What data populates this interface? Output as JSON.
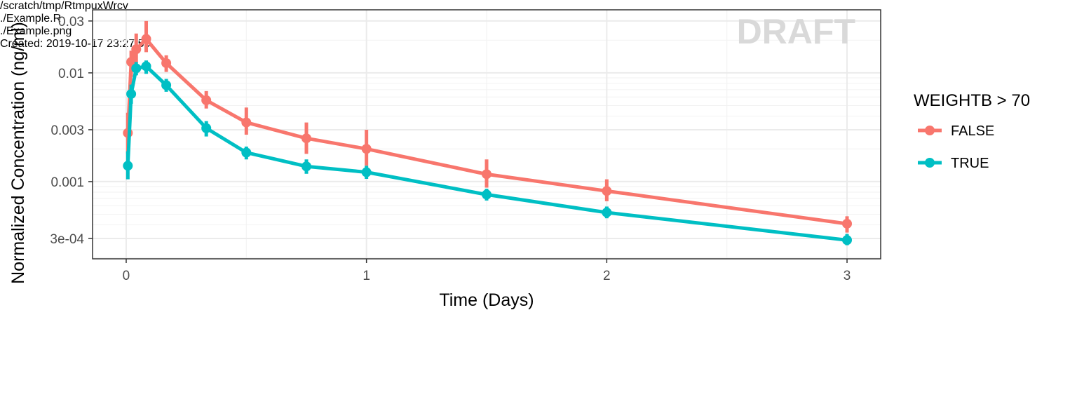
{
  "chart_data": {
    "type": "line",
    "xlabel": "Time (Days)",
    "ylabel": "Normalized Concentration (ng/ml)",
    "y_scale": "log10",
    "xlim": [
      -0.14,
      3.14
    ],
    "ylim": [
      0.000195,
      0.038
    ],
    "x_ticks": [
      0,
      1,
      2,
      3
    ],
    "x_tick_labels": [
      "0",
      "1",
      "2",
      "3"
    ],
    "y_ticks": [
      0.0003,
      0.001,
      0.003,
      0.01,
      0.03
    ],
    "y_tick_labels": [
      "3e-04",
      "0.001",
      "0.003",
      "0.01",
      "0.03"
    ],
    "grid": true,
    "legend": {
      "title": "WEIGHTB > 70",
      "position": "right"
    },
    "watermark": "DRAFT",
    "series": [
      {
        "name": "FALSE",
        "color": "#F8766D",
        "x": [
          0.0069,
          0.0208,
          0.0417,
          0.0833,
          0.1667,
          0.3333,
          0.5,
          0.75,
          1,
          1.5,
          2,
          3
        ],
        "y": [
          0.0028,
          0.0126,
          0.0165,
          0.0205,
          0.0123,
          0.0056,
          0.0035,
          0.0025,
          0.002,
          0.00117,
          0.00082,
          0.00041
        ],
        "err_low": [
          0.0018,
          0.0092,
          0.0125,
          0.0155,
          0.0102,
          0.0047,
          0.0027,
          0.0018,
          0.0014,
          0.00088,
          0.00066,
          0.00034
        ],
        "err_high": [
          0.0043,
          0.016,
          0.023,
          0.03,
          0.0145,
          0.0068,
          0.0048,
          0.0035,
          0.003,
          0.0016,
          0.00105,
          0.00048
        ]
      },
      {
        "name": "TRUE",
        "color": "#00BFC4",
        "x": [
          0.0069,
          0.0208,
          0.0417,
          0.0833,
          0.1667,
          0.3333,
          0.5,
          0.75,
          1,
          1.5,
          2,
          3
        ],
        "y": [
          0.0014,
          0.0064,
          0.011,
          0.0115,
          0.0077,
          0.0031,
          0.00185,
          0.00138,
          0.00122,
          0.00076,
          0.00052,
          0.00029
        ],
        "err_low": [
          0.00105,
          0.0052,
          0.0095,
          0.0098,
          0.0067,
          0.0026,
          0.0016,
          0.00118,
          0.00106,
          0.00067,
          0.00046,
          0.00026
        ],
        "err_high": [
          0.0019,
          0.0078,
          0.0126,
          0.013,
          0.0088,
          0.0036,
          0.0021,
          0.0016,
          0.0014,
          0.00086,
          0.00059,
          0.00033
        ]
      }
    ]
  },
  "caption": {
    "lines": [
      "/scratch/tmp/RtmpuxWrcv",
      "./Example.R",
      "./Example.png",
      "Created: 2019-10-17 23:27:50"
    ]
  }
}
